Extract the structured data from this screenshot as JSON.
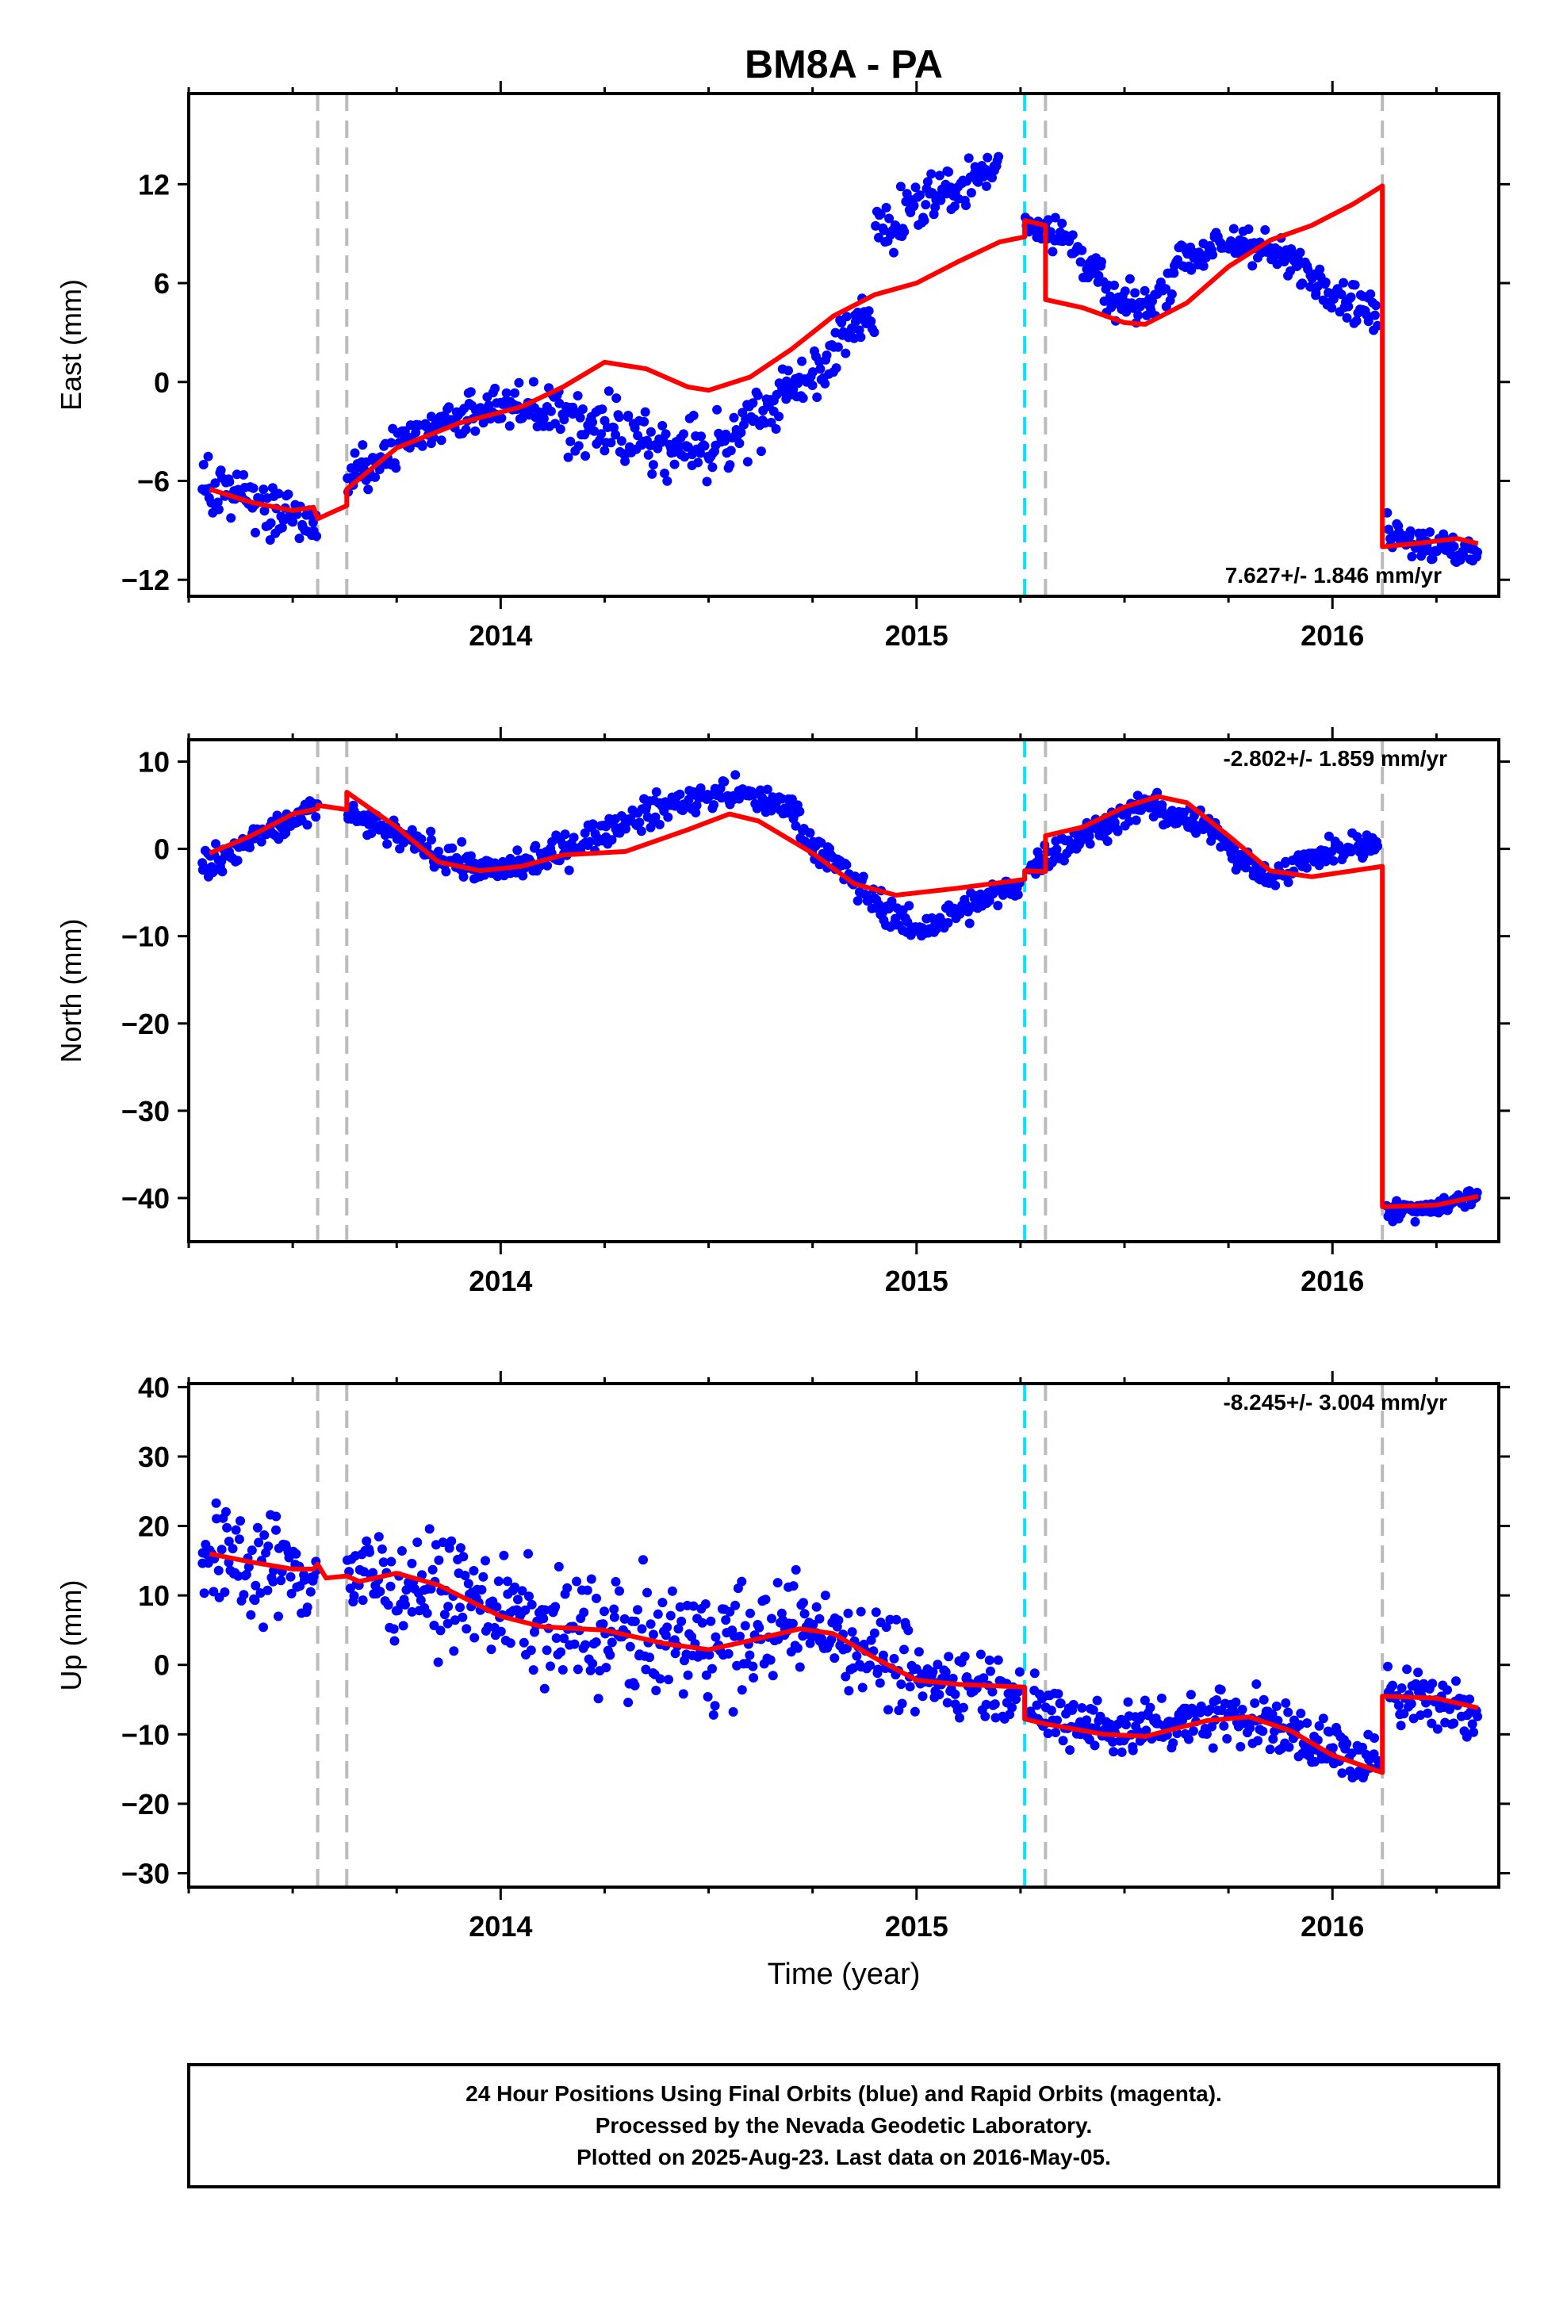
{
  "chart_data": {
    "type": "scatter",
    "title": "BM8A - PA",
    "xlabel": "Time (year)",
    "xlim": [
      2013.25,
      2016.4
    ],
    "x_ticks": [
      2014,
      2015,
      2016
    ],
    "marker_colors": {
      "final_orbits": "#0000ff",
      "rapid_orbits": "#ff00ff",
      "model": "#ff0000"
    },
    "event_lines": [
      {
        "x": 2013.56,
        "color": "#bbbbbb"
      },
      {
        "x": 2013.63,
        "color": "#bbbbbb"
      },
      {
        "x": 2015.26,
        "color": "#00e5ff"
      },
      {
        "x": 2015.31,
        "color": "#bbbbbb"
      },
      {
        "x": 2016.12,
        "color": "#bbbbbb"
      }
    ],
    "panels": [
      {
        "id": "east",
        "ylabel": "East (mm)",
        "ylim": [
          -13,
          17.5
        ],
        "y_ticks": [
          -12,
          -6,
          0,
          6,
          12
        ],
        "rate": "7.627+/- 1.846 mm/yr",
        "model": [
          [
            2013.3,
            -6.5
          ],
          [
            2013.4,
            -7.3
          ],
          [
            2013.5,
            -7.8
          ],
          [
            2013.55,
            -7.6
          ],
          [
            2013.56,
            -8.3
          ],
          [
            2013.63,
            -7.5
          ],
          [
            2013.63,
            -6.5
          ],
          [
            2013.75,
            -4.0
          ],
          [
            2013.9,
            -2.5
          ],
          [
            2014.05,
            -1.5
          ],
          [
            2014.15,
            -0.3
          ],
          [
            2014.25,
            1.2
          ],
          [
            2014.35,
            0.8
          ],
          [
            2014.45,
            -0.3
          ],
          [
            2014.5,
            -0.5
          ],
          [
            2014.6,
            0.3
          ],
          [
            2014.7,
            2.0
          ],
          [
            2014.8,
            4.0
          ],
          [
            2014.9,
            5.3
          ],
          [
            2015.0,
            6.0
          ],
          [
            2015.1,
            7.3
          ],
          [
            2015.2,
            8.5
          ],
          [
            2015.26,
            8.8
          ],
          [
            2015.26,
            9.8
          ],
          [
            2015.31,
            9.5
          ],
          [
            2015.31,
            5.0
          ],
          [
            2015.4,
            4.5
          ],
          [
            2015.5,
            3.6
          ],
          [
            2015.55,
            3.5
          ],
          [
            2015.65,
            4.8
          ],
          [
            2015.75,
            7.0
          ],
          [
            2015.85,
            8.6
          ],
          [
            2015.95,
            9.5
          ],
          [
            2016.05,
            10.8
          ],
          [
            2016.12,
            11.9
          ],
          [
            2016.12,
            -10.0
          ],
          [
            2016.2,
            -9.8
          ],
          [
            2016.3,
            -9.5
          ],
          [
            2016.35,
            -9.8
          ]
        ],
        "scatter_segments": [
          {
            "x": [
              2013.28,
              2013.56
            ],
            "trend": [
              [
                2013.28,
                -6.2
              ],
              [
                2013.42,
                -7.5
              ],
              [
                2013.56,
                -8.8
              ]
            ],
            "noise": 1.4
          },
          {
            "x": [
              2013.63,
              2014.05
            ],
            "trend": [
              [
                2013.63,
                -6.0
              ],
              [
                2013.85,
                -2.5
              ],
              [
                2014.05,
                -1.0
              ]
            ],
            "noise": 1.4
          },
          {
            "x": [
              2014.05,
              2014.55
            ],
            "trend": [
              [
                2014.05,
                -1.5
              ],
              [
                2014.3,
                -3.0
              ],
              [
                2014.5,
                -4.5
              ],
              [
                2014.55,
                -4.0
              ]
            ],
            "noise": 1.6
          },
          {
            "x": [
              2014.55,
              2014.9
            ],
            "trend": [
              [
                2014.55,
                -3.5
              ],
              [
                2014.75,
                0.5
              ],
              [
                2014.9,
                4.5
              ]
            ],
            "noise": 1.5
          },
          {
            "x": [
              2014.9,
              2015.2
            ],
            "trend": [
              [
                2014.9,
                9.0
              ],
              [
                2015.05,
                11.5
              ],
              [
                2015.2,
                13.0
              ]
            ],
            "noise": 1.3
          },
          {
            "x": [
              2015.26,
              2015.45
            ],
            "trend": [
              [
                2015.26,
                10.0
              ],
              [
                2015.35,
                9.0
              ],
              [
                2015.45,
                6.0
              ]
            ],
            "noise": 1.2
          },
          {
            "x": [
              2015.45,
              2015.62
            ],
            "trend": [
              [
                2015.45,
                5.0
              ],
              [
                2015.55,
                4.5
              ],
              [
                2015.62,
                6.5
              ]
            ],
            "noise": 1.0
          },
          {
            "x": [
              2015.62,
              2016.11
            ],
            "trend": [
              [
                2015.62,
                7.5
              ],
              [
                2015.8,
                8.5
              ],
              [
                2015.95,
                6.5
              ],
              [
                2016.11,
                4.0
              ]
            ],
            "noise": 1.1
          },
          {
            "x": [
              2016.13,
              2016.35
            ],
            "trend": [
              [
                2016.13,
                -9.0
              ],
              [
                2016.25,
                -10.0
              ],
              [
                2016.35,
                -10.5
              ]
            ],
            "noise": 1.0
          }
        ]
      },
      {
        "id": "north",
        "ylabel": "North (mm)",
        "ylim": [
          -45,
          12.5
        ],
        "y_ticks": [
          -40,
          -30,
          -20,
          -10,
          0,
          10
        ],
        "rate": "-2.802+/- 1.859 mm/yr",
        "model": [
          [
            2013.3,
            -0.5
          ],
          [
            2013.4,
            1.5
          ],
          [
            2013.5,
            4.0
          ],
          [
            2013.56,
            4.6
          ],
          [
            2013.56,
            5.0
          ],
          [
            2013.63,
            4.5
          ],
          [
            2013.63,
            6.5
          ],
          [
            2013.75,
            2.5
          ],
          [
            2013.85,
            -1.5
          ],
          [
            2013.95,
            -2.5
          ],
          [
            2014.05,
            -2.0
          ],
          [
            2014.15,
            -0.7
          ],
          [
            2014.3,
            -0.3
          ],
          [
            2014.45,
            2.2
          ],
          [
            2014.55,
            4.0
          ],
          [
            2014.62,
            3.2
          ],
          [
            2014.75,
            -0.5
          ],
          [
            2014.85,
            -4.0
          ],
          [
            2014.95,
            -5.3
          ],
          [
            2015.1,
            -4.5
          ],
          [
            2015.26,
            -3.5
          ],
          [
            2015.26,
            -2.5
          ],
          [
            2015.31,
            -2.6
          ],
          [
            2015.31,
            1.5
          ],
          [
            2015.4,
            2.5
          ],
          [
            2015.5,
            4.8
          ],
          [
            2015.58,
            6.0
          ],
          [
            2015.65,
            5.3
          ],
          [
            2015.75,
            1.5
          ],
          [
            2015.85,
            -2.5
          ],
          [
            2015.95,
            -3.2
          ],
          [
            2016.05,
            -2.5
          ],
          [
            2016.12,
            -2.0
          ],
          [
            2016.12,
            -41.0
          ],
          [
            2016.25,
            -40.8
          ],
          [
            2016.35,
            -39.8
          ]
        ],
        "scatter_segments": [
          {
            "x": [
              2013.28,
              2013.56
            ],
            "trend": [
              [
                2013.28,
                -2.0
              ],
              [
                2013.42,
                1.5
              ],
              [
                2013.56,
                4.5
              ]
            ],
            "noise": 1.6
          },
          {
            "x": [
              2013.63,
              2014.05
            ],
            "trend": [
              [
                2013.63,
                4.0
              ],
              [
                2013.8,
                0.5
              ],
              [
                2013.95,
                -2.5
              ],
              [
                2014.05,
                -2.0
              ]
            ],
            "noise": 1.5
          },
          {
            "x": [
              2014.05,
              2014.4
            ],
            "trend": [
              [
                2014.05,
                -2.0
              ],
              [
                2014.2,
                1.0
              ],
              [
                2014.4,
                5.0
              ]
            ],
            "noise": 1.6
          },
          {
            "x": [
              2014.4,
              2014.72
            ],
            "trend": [
              [
                2014.4,
                5.0
              ],
              [
                2014.55,
                6.5
              ],
              [
                2014.72,
                4.5
              ]
            ],
            "noise": 1.4
          },
          {
            "x": [
              2014.72,
              2015.25
            ],
            "trend": [
              [
                2014.72,
                2.0
              ],
              [
                2014.9,
                -6.0
              ],
              [
                2015.0,
                -9.5
              ],
              [
                2015.25,
                -4.0
              ]
            ],
            "noise": 1.6
          },
          {
            "x": [
              2015.27,
              2015.75
            ],
            "trend": [
              [
                2015.27,
                -2.0
              ],
              [
                2015.4,
                1.5
              ],
              [
                2015.55,
                5.0
              ],
              [
                2015.75,
                1.5
              ]
            ],
            "noise": 1.5
          },
          {
            "x": [
              2015.75,
              2016.11
            ],
            "trend": [
              [
                2015.75,
                0.0
              ],
              [
                2015.85,
                -3.5
              ],
              [
                2015.95,
                -1.0
              ],
              [
                2016.11,
                1.0
              ]
            ],
            "noise": 1.4
          },
          {
            "x": [
              2016.13,
              2016.35
            ],
            "trend": [
              [
                2016.13,
                -41.5
              ],
              [
                2016.25,
                -41.0
              ],
              [
                2016.35,
                -39.5
              ]
            ],
            "noise": 1.0
          }
        ]
      },
      {
        "id": "up",
        "ylabel": "Up (mm)",
        "ylim": [
          -32,
          40.5
        ],
        "y_ticks": [
          -30,
          -20,
          -10,
          0,
          10,
          20,
          30,
          40
        ],
        "rate": "-8.245+/- 3.004 mm/yr",
        "model": [
          [
            2013.3,
            16.0
          ],
          [
            2013.4,
            14.8
          ],
          [
            2013.5,
            13.8
          ],
          [
            2013.55,
            13.8
          ],
          [
            2013.56,
            14.5
          ],
          [
            2013.58,
            12.5
          ],
          [
            2013.63,
            12.8
          ],
          [
            2013.66,
            12.0
          ],
          [
            2013.75,
            13.2
          ],
          [
            2013.85,
            11.5
          ],
          [
            2014.0,
            7.0
          ],
          [
            2014.1,
            5.5
          ],
          [
            2014.25,
            5.0
          ],
          [
            2014.4,
            3.0
          ],
          [
            2014.5,
            2.2
          ],
          [
            2014.6,
            3.5
          ],
          [
            2014.72,
            5.2
          ],
          [
            2014.8,
            4.5
          ],
          [
            2014.9,
            1.0
          ],
          [
            2015.0,
            -2.2
          ],
          [
            2015.1,
            -2.8
          ],
          [
            2015.26,
            -3.2
          ],
          [
            2015.26,
            -7.8
          ],
          [
            2015.31,
            -8.5
          ],
          [
            2015.45,
            -10.0
          ],
          [
            2015.55,
            -10.3
          ],
          [
            2015.7,
            -8.0
          ],
          [
            2015.8,
            -7.5
          ],
          [
            2015.9,
            -9.5
          ],
          [
            2016.0,
            -13.0
          ],
          [
            2016.12,
            -15.5
          ],
          [
            2016.12,
            -4.5
          ],
          [
            2016.25,
            -4.8
          ],
          [
            2016.35,
            -6.2
          ]
        ],
        "scatter_segments": [
          {
            "x": [
              2013.28,
              2013.56
            ],
            "trend": [
              [
                2013.28,
                16.0
              ],
              [
                2013.56,
                13.0
              ]
            ],
            "noise": 7.0
          },
          {
            "x": [
              2013.63,
              2014.1
            ],
            "trend": [
              [
                2013.63,
                13.0
              ],
              [
                2013.85,
                11.0
              ],
              [
                2014.1,
                6.0
              ]
            ],
            "noise": 6.5
          },
          {
            "x": [
              2014.1,
              2014.6
            ],
            "trend": [
              [
                2014.1,
                5.5
              ],
              [
                2014.4,
                3.0
              ],
              [
                2014.6,
                3.0
              ]
            ],
            "noise": 7.5
          },
          {
            "x": [
              2014.6,
              2015.0
            ],
            "trend": [
              [
                2014.6,
                4.0
              ],
              [
                2014.75,
                6.0
              ],
              [
                2015.0,
                -1.0
              ]
            ],
            "noise": 6.0
          },
          {
            "x": [
              2015.0,
              2015.25
            ],
            "trend": [
              [
                2015.0,
                -2.0
              ],
              [
                2015.25,
                -3.0
              ]
            ],
            "noise": 4.5
          },
          {
            "x": [
              2015.27,
              2016.11
            ],
            "trend": [
              [
                2015.27,
                -6.5
              ],
              [
                2015.5,
                -9.5
              ],
              [
                2015.75,
                -6.5
              ],
              [
                2016.0,
                -12.0
              ],
              [
                2016.11,
                -15.0
              ]
            ],
            "noise": 3.8
          },
          {
            "x": [
              2016.13,
              2016.35
            ],
            "trend": [
              [
                2016.13,
                -3.0
              ],
              [
                2016.25,
                -5.0
              ],
              [
                2016.35,
                -7.5
              ]
            ],
            "noise": 4.0
          }
        ]
      }
    ],
    "caption": [
      "24 Hour Positions Using Final Orbits (blue) and Rapid Orbits (magenta).",
      "Processed by the Nevada Geodetic Laboratory.",
      "Plotted on 2025-Aug-23. Last data on 2016-May-05."
    ]
  }
}
